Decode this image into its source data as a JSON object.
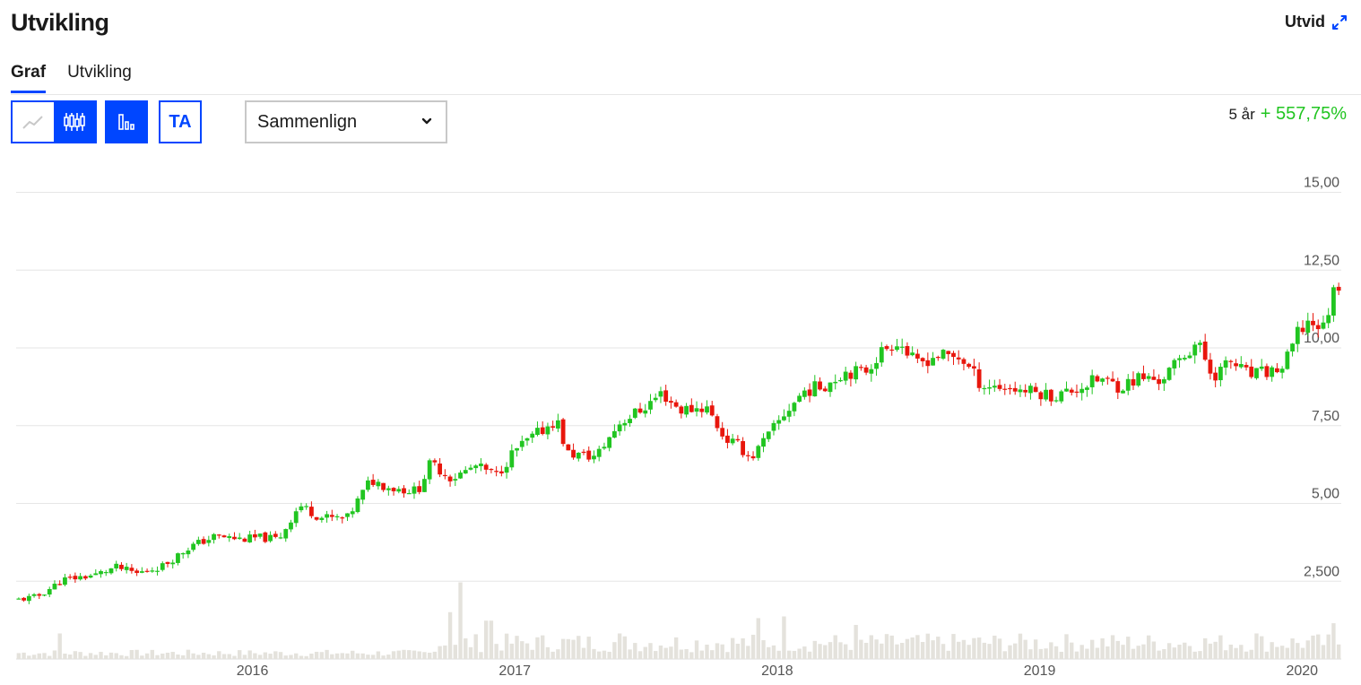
{
  "header": {
    "title": "Utvikling",
    "expand_label": "Utvid"
  },
  "tabs": [
    {
      "label": "Graf",
      "active": true
    },
    {
      "label": "Utvikling",
      "active": false
    }
  ],
  "toolbar": {
    "line_icon": "line-chart-icon",
    "candle_icon": "candlestick-icon",
    "volume_icon": "volume-bars-icon",
    "ta_label": "TA",
    "compare_label": "Sammenlign",
    "compare_icon": "chevron-down-icon"
  },
  "performance": {
    "period": "5 år",
    "value": "+ 557,75%"
  },
  "colors": {
    "accent": "#0046ff",
    "up": "#21c521",
    "down": "#e8160c",
    "volume": "#e4e2dc",
    "grid": "#e6e6e6"
  },
  "chart_data": {
    "type": "candlestick",
    "y_ticks": [
      "15,00",
      "12,50",
      "10,00",
      "7,50",
      "5,00",
      "2,500"
    ],
    "x_ticks": [
      "2016",
      "2017",
      "2018",
      "2019",
      "2020"
    ],
    "ylim": [
      0,
      15
    ],
    "xlim": [
      2015.12,
      2020.17
    ],
    "grid": true,
    "price_anchors": [
      [
        2015.12,
        1.9
      ],
      [
        2015.2,
        2.0
      ],
      [
        2015.3,
        2.55
      ],
      [
        2015.42,
        2.7
      ],
      [
        2015.5,
        2.95
      ],
      [
        2015.58,
        2.75
      ],
      [
        2015.68,
        3.0
      ],
      [
        2015.78,
        3.6
      ],
      [
        2015.88,
        3.95
      ],
      [
        2015.98,
        3.85
      ],
      [
        2016.05,
        3.9
      ],
      [
        2016.12,
        3.85
      ],
      [
        2016.2,
        4.95
      ],
      [
        2016.28,
        4.55
      ],
      [
        2016.38,
        4.5
      ],
      [
        2016.47,
        5.75
      ],
      [
        2016.55,
        5.5
      ],
      [
        2016.65,
        5.4
      ],
      [
        2016.7,
        6.3
      ],
      [
        2016.78,
        5.8
      ],
      [
        2016.87,
        6.2
      ],
      [
        2016.95,
        5.9
      ],
      [
        2017.02,
        6.7
      ],
      [
        2017.1,
        7.2
      ],
      [
        2017.18,
        7.7
      ],
      [
        2017.22,
        6.6
      ],
      [
        2017.33,
        6.5
      ],
      [
        2017.42,
        7.6
      ],
      [
        2017.5,
        8.0
      ],
      [
        2017.58,
        8.55
      ],
      [
        2017.65,
        8.0
      ],
      [
        2017.75,
        8.1
      ],
      [
        2017.82,
        7.1
      ],
      [
        2017.88,
        6.8
      ],
      [
        2017.92,
        6.45
      ],
      [
        2017.98,
        7.1
      ],
      [
        2018.05,
        7.9
      ],
      [
        2018.12,
        8.6
      ],
      [
        2018.2,
        8.8
      ],
      [
        2018.28,
        9.25
      ],
      [
        2018.35,
        9.2
      ],
      [
        2018.42,
        9.9
      ],
      [
        2018.48,
        10.25
      ],
      [
        2018.55,
        9.45
      ],
      [
        2018.62,
        9.75
      ],
      [
        2018.72,
        9.7
      ],
      [
        2018.8,
        8.8
      ],
      [
        2018.88,
        8.75
      ],
      [
        2018.95,
        8.65
      ],
      [
        2019.02,
        8.55
      ],
      [
        2019.08,
        8.45
      ],
      [
        2019.15,
        8.65
      ],
      [
        2019.25,
        9.0
      ],
      [
        2019.33,
        8.75
      ],
      [
        2019.4,
        9.05
      ],
      [
        2019.48,
        8.95
      ],
      [
        2019.55,
        9.55
      ],
      [
        2019.62,
        10.2
      ],
      [
        2019.68,
        9.1
      ],
      [
        2019.75,
        9.55
      ],
      [
        2019.82,
        9.1
      ],
      [
        2019.88,
        9.2
      ],
      [
        2019.95,
        9.35
      ],
      [
        2020.0,
        10.4
      ],
      [
        2020.05,
        10.9
      ],
      [
        2020.1,
        10.6
      ],
      [
        2020.15,
        12.1
      ]
    ],
    "volume_spikes": [
      [
        2015.28,
        0.3
      ],
      [
        2016.78,
        0.55
      ],
      [
        2016.82,
        0.9
      ],
      [
        2016.92,
        0.45
      ],
      [
        2017.42,
        0.3
      ],
      [
        2017.95,
        0.48
      ],
      [
        2018.05,
        0.5
      ],
      [
        2018.32,
        0.4
      ],
      [
        2019.85,
        0.3
      ],
      [
        2020.14,
        0.42
      ]
    ]
  }
}
